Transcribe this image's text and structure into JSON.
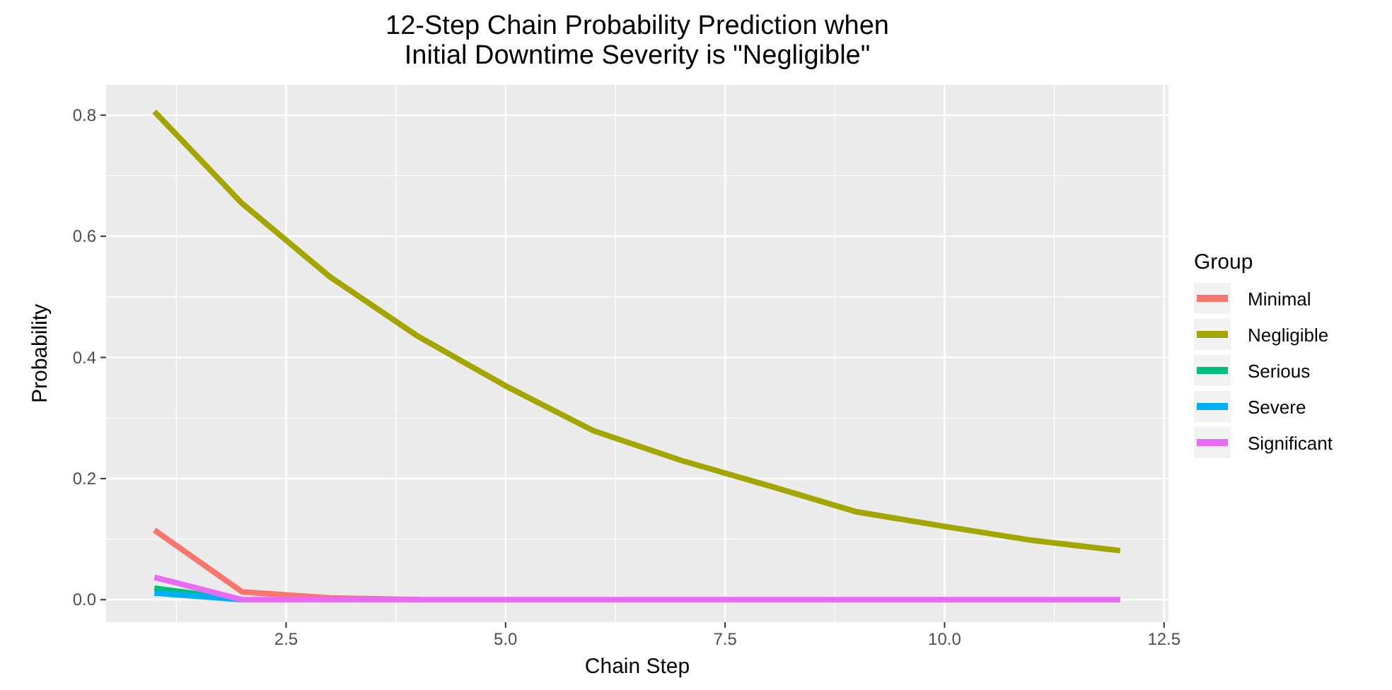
{
  "chart_data": {
    "type": "line",
    "title": "12-Step Chain Probability Prediction when\nInitial Downtime Severity is \"Negligible\"",
    "xlabel": "Chain Step",
    "ylabel": "Probability",
    "legend_title": "Group",
    "legend": "right",
    "grid": true,
    "x": [
      1,
      2,
      3,
      4,
      5,
      6,
      7,
      8,
      9,
      10,
      11,
      12
    ],
    "xlim": [
      0.45,
      12.55
    ],
    "xticks": [
      2.5,
      {
        "value": 5,
        "label": "5.0"
      },
      7.5,
      {
        "value": 10,
        "label": "10.0"
      },
      12.5
    ],
    "ylim": [
      -0.037,
      0.85
    ],
    "yticks": [
      {
        "value": 0,
        "label": "0.0"
      },
      0.2,
      0.4,
      0.6,
      0.8
    ],
    "series": [
      {
        "name": "Minimal",
        "color": "#f8766d",
        "values": [
          0.115,
          0.013,
          0.003,
          0,
          null,
          null,
          null,
          null,
          null,
          null,
          null,
          null
        ]
      },
      {
        "name": "Negligible",
        "color": "#a3a500",
        "values": [
          0.806,
          0.654,
          0.533,
          0.435,
          0.353,
          0.279,
          0.23,
          0.188,
          0.145,
          0.121,
          0.098,
          0.081
        ]
      },
      {
        "name": "Serious",
        "color": "#00bf7d",
        "values": [
          0.019,
          0,
          null,
          null,
          null,
          null,
          null,
          null,
          null,
          null,
          null,
          null
        ]
      },
      {
        "name": "Severe",
        "color": "#00b0f6",
        "values": [
          0.011,
          0,
          null,
          null,
          null,
          null,
          null,
          null,
          null,
          null,
          null,
          null
        ]
      },
      {
        "name": "Significant",
        "color": "#e76bf3",
        "values": [
          0.037,
          0,
          0,
          0,
          0,
          0,
          0,
          0,
          0,
          0,
          0,
          0
        ]
      }
    ]
  }
}
